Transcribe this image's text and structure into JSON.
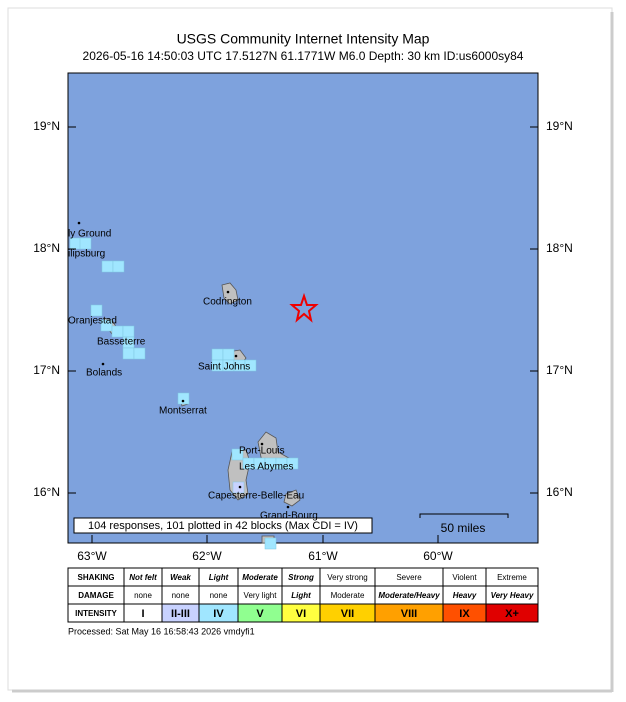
{
  "header": {
    "title": "USGS Community Internet Intensity Map",
    "subtitle": "2026-05-16 14:50:03 UTC 17.5127N 61.1771W M6.0 Depth: 30 km ID:us6000sy84"
  },
  "map": {
    "lat_labels": [
      "19°N",
      "18°N",
      "17°N",
      "16°N"
    ],
    "lon_labels": [
      "63°W",
      "62°W",
      "61°W",
      "60°W"
    ],
    "places": [
      "ly Ground",
      "ilipsburg",
      "Codrington",
      "Oranjestad",
      "Basseterre",
      "Bolands",
      "Saint Johns",
      "Montserrat",
      "Port-Louis",
      "Les Abymes",
      "Capesterre-Belle-Eau",
      "Grand-Bourg"
    ],
    "summary": "104 responses, 101 plotted in 42 blocks (Max CDI = IV)",
    "scale_label": "50 miles"
  },
  "legend": {
    "row_labels": [
      "SHAKING",
      "DAMAGE",
      "INTENSITY"
    ],
    "shaking": [
      "Not felt",
      "Weak",
      "Light",
      "Moderate",
      "Strong",
      "Very strong",
      "Severe",
      "Violent",
      "Extreme"
    ],
    "damage": [
      "none",
      "none",
      "none",
      "Very light",
      "Light",
      "Moderate",
      "Moderate/Heavy",
      "Heavy",
      "Very Heavy"
    ],
    "intensity": [
      "I",
      "II-III",
      "IV",
      "V",
      "VI",
      "VII",
      "VIII",
      "IX",
      "X+"
    ],
    "colors": [
      "#ffffff",
      "#c8d2ff",
      "#a0e6ff",
      "#90ff90",
      "#ffff40",
      "#ffd000",
      "#ffa000",
      "#ff5000",
      "#e00000"
    ]
  },
  "footer": "Processed: Sat May 16 16:58:43 2026 vmdyfi1"
}
